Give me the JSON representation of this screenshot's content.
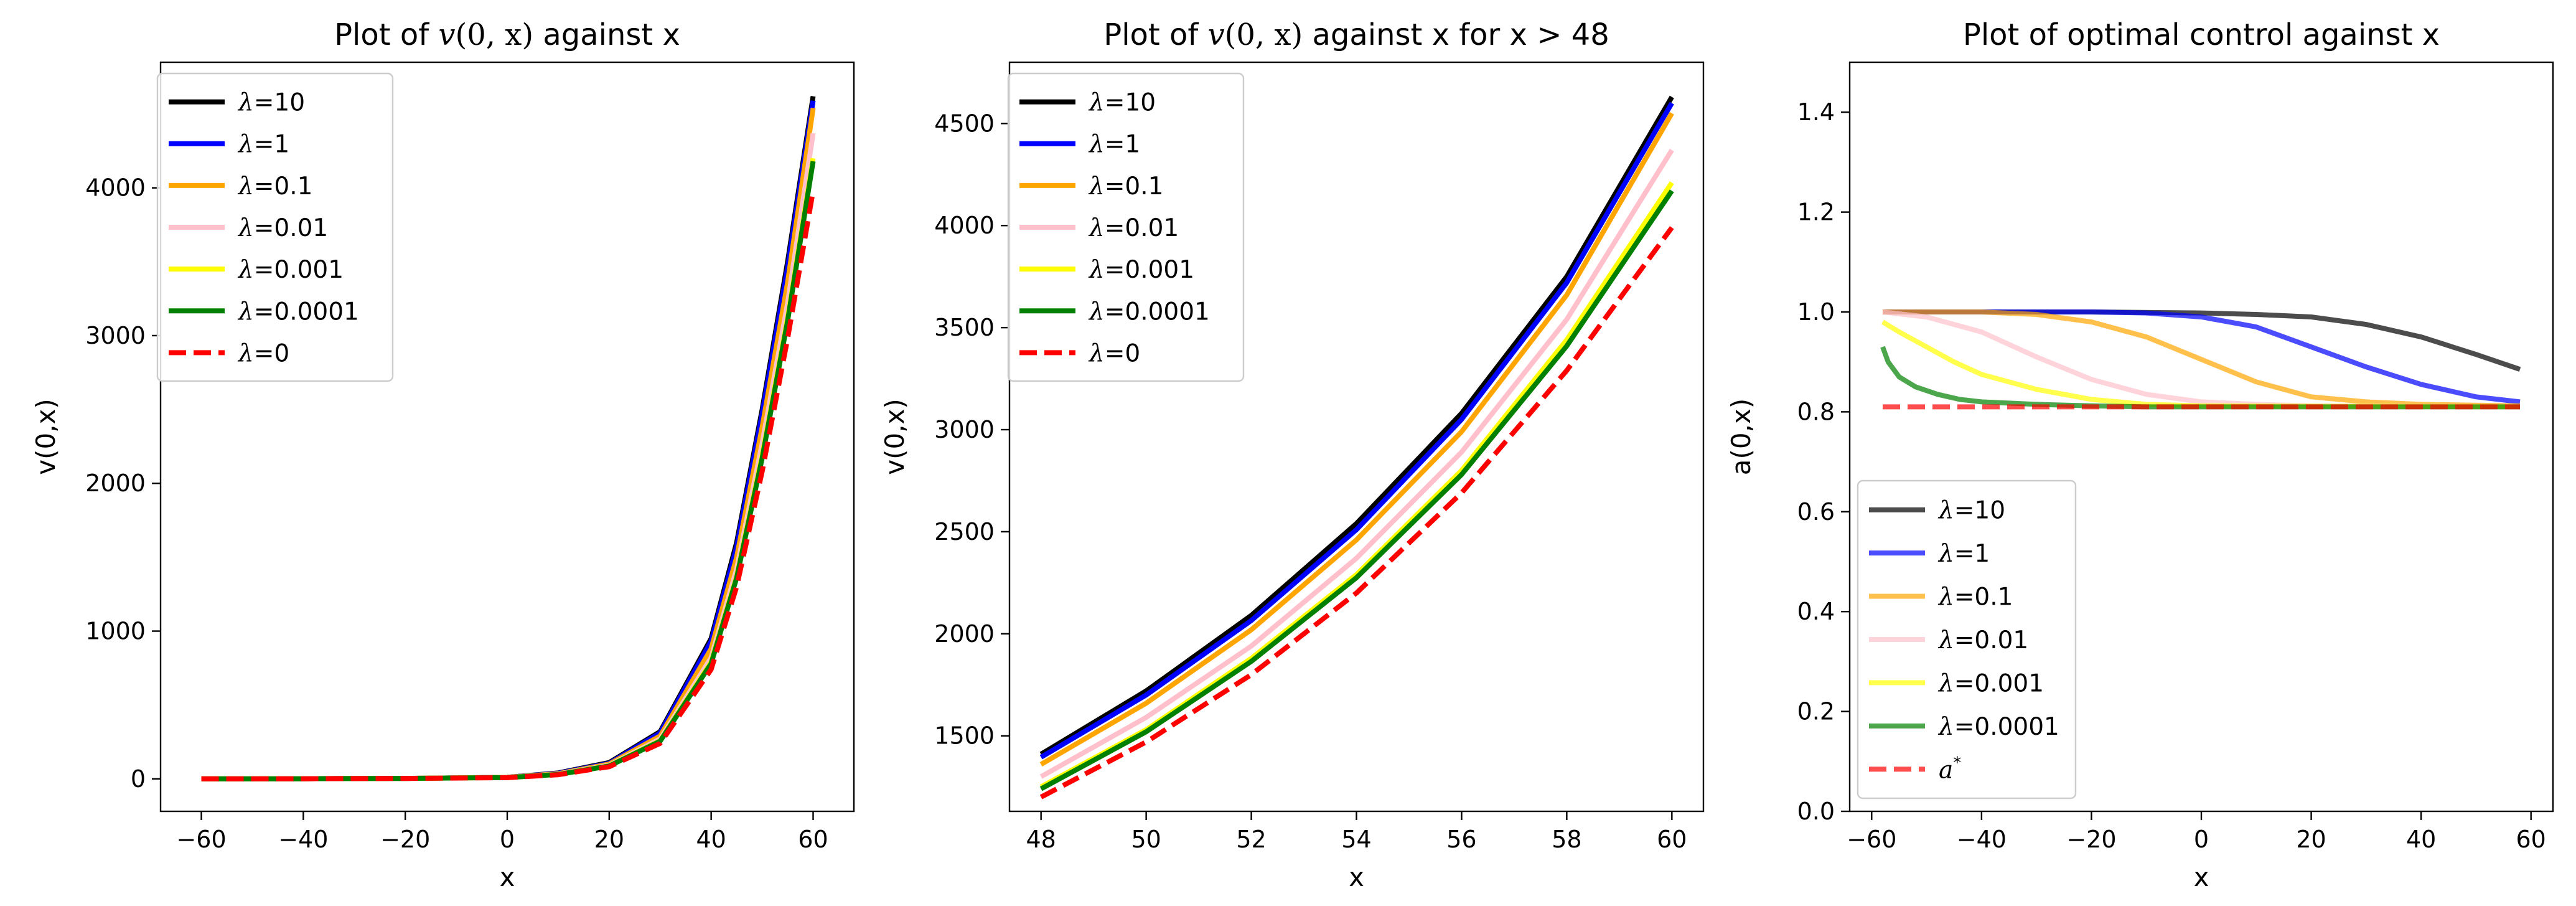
{
  "chart_data": [
    {
      "type": "line",
      "title": "Plot of v(0, x) against x",
      "title_parts": {
        "pre": "Plot of ",
        "fn": "v",
        "args": "(0, x)",
        "post": " against x"
      },
      "xlabel": "x",
      "ylabel": "v(0,x)",
      "xlim": [
        -68,
        68
      ],
      "ylim": [
        -220,
        4850
      ],
      "xticks": [
        -60,
        -40,
        -20,
        0,
        20,
        40,
        60
      ],
      "xtick_labels": [
        "−60",
        "−40",
        "−20",
        "0",
        "20",
        "40",
        "60"
      ],
      "yticks": [
        0,
        1000,
        2000,
        3000,
        4000
      ],
      "ytick_labels": [
        "0",
        "1000",
        "2000",
        "3000",
        "4000"
      ],
      "legend_position": "upper-left",
      "series": [
        {
          "name": "λ=10",
          "label_value": "10",
          "color": "#000000",
          "style": "solid",
          "x": [
            -60,
            -40,
            -20,
            0,
            10,
            20,
            30,
            40,
            45,
            50,
            55,
            60
          ],
          "y": [
            0,
            1,
            3,
            10,
            40,
            110,
            320,
            950,
            1600,
            2500,
            3500,
            4620
          ]
        },
        {
          "name": "λ=1",
          "label_value": "1",
          "color": "#0000ff",
          "style": "solid",
          "x": [
            -60,
            -40,
            -20,
            0,
            10,
            20,
            30,
            40,
            45,
            50,
            55,
            60
          ],
          "y": [
            0,
            1,
            3,
            10,
            38,
            105,
            310,
            930,
            1570,
            2470,
            3460,
            4590
          ]
        },
        {
          "name": "λ=0.1",
          "label_value": "0.1",
          "color": "#ffa500",
          "style": "solid",
          "x": [
            -60,
            -40,
            -20,
            0,
            10,
            20,
            30,
            40,
            45,
            50,
            55,
            60
          ],
          "y": [
            0,
            1,
            3,
            10,
            35,
            100,
            290,
            880,
            1500,
            2380,
            3360,
            4540
          ]
        },
        {
          "name": "λ=0.01",
          "label_value": "0.01",
          "color": "#ffc0cb",
          "style": "solid",
          "x": [
            -60,
            -40,
            -20,
            0,
            10,
            20,
            30,
            40,
            45,
            50,
            55,
            60
          ],
          "y": [
            0,
            1,
            3,
            9,
            32,
            92,
            270,
            820,
            1420,
            2270,
            3220,
            4370
          ]
        },
        {
          "name": "λ=0.001",
          "label_value": "0.001",
          "color": "#ffff00",
          "style": "solid",
          "x": [
            -60,
            -40,
            -20,
            0,
            10,
            20,
            30,
            40,
            45,
            50,
            55,
            60
          ],
          "y": [
            0,
            1,
            3,
            9,
            30,
            88,
            258,
            790,
            1370,
            2190,
            3120,
            4200
          ]
        },
        {
          "name": "λ=0.0001",
          "label_value": "0.0001",
          "color": "#008000",
          "style": "solid",
          "x": [
            -60,
            -40,
            -20,
            0,
            10,
            20,
            30,
            40,
            45,
            50,
            55,
            60
          ],
          "y": [
            0,
            1,
            3,
            9,
            30,
            87,
            255,
            780,
            1360,
            2170,
            3100,
            4180
          ]
        },
        {
          "name": "λ=0",
          "label_value": "0",
          "color": "#ff0000",
          "style": "dashed",
          "x": [
            -60,
            -40,
            -20,
            0,
            10,
            20,
            30,
            40,
            45,
            50,
            55,
            60
          ],
          "y": [
            0,
            1,
            3,
            8,
            28,
            82,
            240,
            740,
            1300,
            2080,
            2980,
            3980
          ]
        }
      ]
    },
    {
      "type": "line",
      "title": "Plot of v(0, x) against x for x > 48",
      "title_parts": {
        "pre": "Plot of ",
        "fn": "v",
        "args": "(0, x)",
        "post": " against x for x > 48"
      },
      "xlabel": "x",
      "ylabel": "v(0,x)",
      "xlim": [
        47.4,
        60.6
      ],
      "ylim": [
        1130,
        4800
      ],
      "xticks": [
        48,
        50,
        52,
        54,
        56,
        58,
        60
      ],
      "xtick_labels": [
        "48",
        "50",
        "52",
        "54",
        "56",
        "58",
        "60"
      ],
      "yticks": [
        1500,
        2000,
        2500,
        3000,
        3500,
        4000,
        4500
      ],
      "ytick_labels": [
        "1500",
        "2000",
        "2500",
        "3000",
        "3500",
        "4000",
        "4500"
      ],
      "legend_position": "upper-left",
      "series": [
        {
          "name": "λ=10",
          "label_value": "10",
          "color": "#000000",
          "style": "solid",
          "x": [
            48,
            50,
            52,
            54,
            56,
            58,
            60
          ],
          "y": [
            1410,
            1720,
            2090,
            2540,
            3080,
            3750,
            4630
          ]
        },
        {
          "name": "λ=1",
          "label_value": "1",
          "color": "#0000ff",
          "style": "solid",
          "x": [
            48,
            50,
            52,
            54,
            56,
            58,
            60
          ],
          "y": [
            1395,
            1700,
            2065,
            2510,
            3050,
            3720,
            4600
          ]
        },
        {
          "name": "λ=0.1",
          "label_value": "0.1",
          "color": "#ffa500",
          "style": "solid",
          "x": [
            48,
            50,
            52,
            54,
            56,
            58,
            60
          ],
          "y": [
            1360,
            1660,
            2020,
            2460,
            2990,
            3660,
            4550
          ]
        },
        {
          "name": "λ=0.01",
          "label_value": "0.01",
          "color": "#ffc0cb",
          "style": "solid",
          "x": [
            48,
            50,
            52,
            54,
            56,
            58,
            60
          ],
          "y": [
            1300,
            1590,
            1940,
            2370,
            2890,
            3540,
            4370
          ]
        },
        {
          "name": "λ=0.001",
          "label_value": "0.001",
          "color": "#ffff00",
          "style": "solid",
          "x": [
            48,
            50,
            52,
            54,
            56,
            58,
            60
          ],
          "y": [
            1250,
            1530,
            1880,
            2290,
            2800,
            3440,
            4210
          ]
        },
        {
          "name": "λ=0.0001",
          "label_value": "0.0001",
          "color": "#008000",
          "style": "solid",
          "x": [
            48,
            50,
            52,
            54,
            56,
            58,
            60
          ],
          "y": [
            1240,
            1520,
            1865,
            2275,
            2780,
            3410,
            4170
          ]
        },
        {
          "name": "λ=0",
          "label_value": "0",
          "color": "#ff0000",
          "style": "dashed",
          "x": [
            48,
            50,
            52,
            54,
            56,
            58,
            60
          ],
          "y": [
            1200,
            1470,
            1800,
            2200,
            2690,
            3290,
            3990
          ]
        }
      ]
    },
    {
      "type": "line",
      "title": "Plot of optimal control against x",
      "xlabel": "x",
      "ylabel": "a(0,x)",
      "xlim": [
        -64,
        64
      ],
      "ylim": [
        0.0,
        1.5
      ],
      "xticks": [
        -60,
        -40,
        -20,
        0,
        20,
        40,
        60
      ],
      "xtick_labels": [
        "−60",
        "−40",
        "−20",
        "0",
        "20",
        "40",
        "60"
      ],
      "yticks": [
        0.0,
        0.2,
        0.4,
        0.6,
        0.8,
        1.0,
        1.2,
        1.4
      ],
      "ytick_labels": [
        "0.0",
        "0.2",
        "0.4",
        "0.6",
        "0.8",
        "1.0",
        "1.2",
        "1.4"
      ],
      "legend_position": "lower-left",
      "series": [
        {
          "name": "λ=10",
          "label_value": "10",
          "color": "#000000",
          "style": "solid",
          "x": [
            -58,
            -40,
            -20,
            0,
            10,
            20,
            30,
            40,
            50,
            58
          ],
          "y": [
            1.0,
            1.0,
            1.0,
            0.998,
            0.995,
            0.99,
            0.975,
            0.95,
            0.915,
            0.885
          ]
        },
        {
          "name": "λ=1",
          "label_value": "1",
          "color": "#0000ff",
          "style": "solid",
          "x": [
            -58,
            -40,
            -20,
            -10,
            0,
            10,
            20,
            30,
            40,
            50,
            58
          ],
          "y": [
            1.0,
            1.0,
            1.0,
            0.998,
            0.99,
            0.97,
            0.93,
            0.89,
            0.855,
            0.83,
            0.82
          ]
        },
        {
          "name": "λ=0.1",
          "label_value": "0.1",
          "color": "#ffa500",
          "style": "solid",
          "x": [
            -58,
            -40,
            -30,
            -20,
            -10,
            0,
            10,
            20,
            30,
            40,
            58
          ],
          "y": [
            1.0,
            1.0,
            0.995,
            0.98,
            0.95,
            0.905,
            0.86,
            0.83,
            0.82,
            0.815,
            0.812
          ]
        },
        {
          "name": "λ=0.01",
          "label_value": "0.01",
          "color": "#ffc0cb",
          "style": "solid",
          "x": [
            -58,
            -50,
            -40,
            -30,
            -20,
            -10,
            0,
            10,
            20,
            58
          ],
          "y": [
            1.0,
            0.99,
            0.96,
            0.91,
            0.865,
            0.835,
            0.82,
            0.815,
            0.812,
            0.81
          ]
        },
        {
          "name": "λ=0.001",
          "label_value": "0.001",
          "color": "#ffff00",
          "style": "solid",
          "x": [
            -58,
            -55,
            -50,
            -45,
            -40,
            -30,
            -20,
            -10,
            0,
            58
          ],
          "y": [
            0.98,
            0.96,
            0.93,
            0.9,
            0.875,
            0.845,
            0.825,
            0.815,
            0.812,
            0.81
          ]
        },
        {
          "name": "λ=0.0001",
          "label_value": "0.0001",
          "color": "#008000",
          "style": "solid",
          "x": [
            -58,
            -57,
            -55,
            -52,
            -48,
            -44,
            -40,
            -30,
            -20,
            -10,
            58
          ],
          "y": [
            0.93,
            0.9,
            0.87,
            0.85,
            0.835,
            0.825,
            0.82,
            0.815,
            0.812,
            0.81,
            0.81
          ]
        },
        {
          "name": "a*",
          "label_value": "*",
          "color": "#ff0000",
          "style": "dashed",
          "x": [
            -58,
            58
          ],
          "y": [
            0.81,
            0.81
          ]
        }
      ]
    }
  ]
}
